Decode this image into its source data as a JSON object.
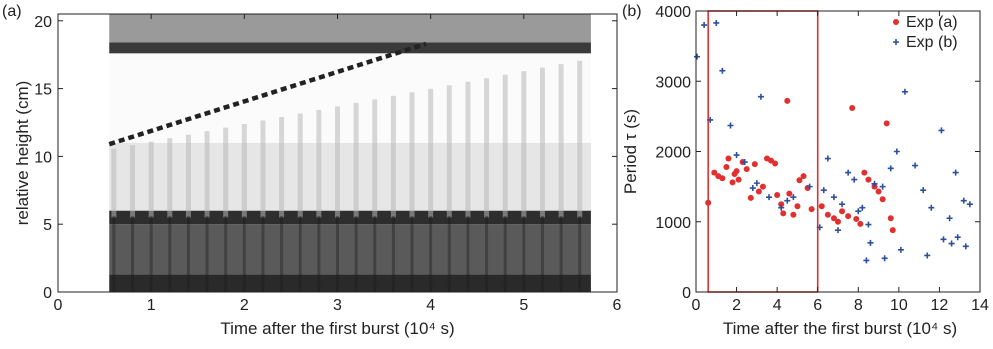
{
  "chart_data": [
    {
      "type": "heatmap",
      "panel_label": "(a)",
      "xlabel": "Time after the first burst (10⁴ s)",
      "ylabel": "relative height (cm)",
      "xlim": [
        0,
        6
      ],
      "ylim": [
        0,
        20.5
      ],
      "xticks": [
        "0",
        "1",
        "2",
        "3",
        "4",
        "5",
        "6"
      ],
      "yticks": [
        "0",
        "5",
        "10",
        "15",
        "20"
      ],
      "data_xrange": [
        0.55,
        5.72
      ],
      "bursts_x": [
        0.6,
        0.8,
        1.0,
        1.2,
        1.4,
        1.6,
        1.8,
        2.0,
        2.2,
        2.4,
        2.6,
        2.8,
        3.0,
        3.2,
        3.4,
        3.6,
        3.8,
        4.0,
        4.2,
        4.4,
        4.6,
        4.8,
        5.0,
        5.2,
        5.4,
        5.6
      ],
      "intensity_bands": [
        {
          "y0": 0.0,
          "y1": 1.3,
          "gray": "#2a2a2a"
        },
        {
          "y0": 1.3,
          "y1": 5.0,
          "gray": "#5a5a5a"
        },
        {
          "y0": 5.0,
          "y1": 6.0,
          "gray": "#2e2e2e"
        },
        {
          "y0": 6.0,
          "y1": 11.0,
          "gray": "#e6e6e6"
        },
        {
          "y0": 11.0,
          "y1": 17.6,
          "gray": "#fbfbfb"
        },
        {
          "y0": 17.6,
          "y1": 18.4,
          "gray": "#3a3a3a"
        },
        {
          "y0": 18.4,
          "y1": 20.5,
          "gray": "#9a9a9a"
        }
      ],
      "front_line": {
        "x": [
          0.55,
          3.95
        ],
        "y": [
          10.9,
          18.3
        ],
        "style": "dashed",
        "color": "#222222"
      }
    },
    {
      "type": "scatter",
      "panel_label": "(b)",
      "xlabel": "Time after the first burst (10⁴ s)",
      "ylabel": "Period τ (s)",
      "xlim": [
        0,
        14
      ],
      "ylim": [
        0,
        4000
      ],
      "xticks": [
        "0",
        "2",
        "4",
        "6",
        "8",
        "10",
        "12",
        "14"
      ],
      "yticks": [
        "0",
        "1000",
        "2000",
        "3000",
        "4000"
      ],
      "highlight_box": {
        "x": [
          0.6,
          6.0
        ],
        "y": [
          0,
          4000
        ],
        "color": "#e23030"
      },
      "legend_position": "top-right",
      "series": [
        {
          "name": "Exp (a)",
          "marker": "circle",
          "color": "#e23030",
          "points": [
            [
              0.6,
              1270
            ],
            [
              0.9,
              1700
            ],
            [
              1.1,
              1650
            ],
            [
              1.3,
              1620
            ],
            [
              1.5,
              1780
            ],
            [
              1.6,
              1900
            ],
            [
              1.8,
              1560
            ],
            [
              1.9,
              1680
            ],
            [
              2.0,
              1720
            ],
            [
              2.1,
              1600
            ],
            [
              2.3,
              1850
            ],
            [
              2.5,
              1750
            ],
            [
              2.7,
              1340
            ],
            [
              2.9,
              1820
            ],
            [
              3.1,
              1430
            ],
            [
              3.3,
              1500
            ],
            [
              3.5,
              1900
            ],
            [
              3.7,
              1870
            ],
            [
              3.9,
              1830
            ],
            [
              4.0,
              1380
            ],
            [
              4.2,
              1250
            ],
            [
              4.3,
              1120
            ],
            [
              4.5,
              2720
            ],
            [
              4.6,
              1400
            ],
            [
              4.8,
              1100
            ],
            [
              5.0,
              1220
            ],
            [
              5.1,
              1590
            ],
            [
              5.3,
              1650
            ],
            [
              5.5,
              1480
            ],
            [
              5.7,
              1180
            ],
            [
              6.2,
              1220
            ],
            [
              6.5,
              1100
            ],
            [
              6.8,
              1050
            ],
            [
              7.0,
              1000
            ],
            [
              7.2,
              1150
            ],
            [
              7.5,
              1080
            ],
            [
              7.7,
              2620
            ],
            [
              7.9,
              1040
            ],
            [
              8.1,
              970
            ],
            [
              8.3,
              1700
            ],
            [
              8.5,
              1600
            ],
            [
              8.8,
              1500
            ],
            [
              9.0,
              1430
            ],
            [
              9.2,
              1320
            ],
            [
              9.4,
              2400
            ],
            [
              9.6,
              1050
            ],
            [
              9.7,
              880
            ]
          ]
        },
        {
          "name": "Exp (b)",
          "marker": "plus",
          "color": "#2e4fa0",
          "points": [
            [
              0.05,
              3350
            ],
            [
              0.4,
              3800
            ],
            [
              0.7,
              2450
            ],
            [
              1.0,
              3830
            ],
            [
              1.3,
              3150
            ],
            [
              1.7,
              2370
            ],
            [
              2.0,
              1950
            ],
            [
              2.4,
              1850
            ],
            [
              2.8,
              1480
            ],
            [
              3.0,
              1550
            ],
            [
              3.2,
              2780
            ],
            [
              3.6,
              1350
            ],
            [
              4.2,
              1200
            ],
            [
              4.5,
              1300
            ],
            [
              4.8,
              1350
            ],
            [
              5.6,
              1500
            ],
            [
              6.1,
              920
            ],
            [
              6.5,
              1900
            ],
            [
              6.8,
              1350
            ],
            [
              7.2,
              1250
            ],
            [
              7.5,
              1700
            ],
            [
              7.8,
              1600
            ],
            [
              8.0,
              1150
            ],
            [
              8.2,
              1200
            ],
            [
              8.5,
              960
            ],
            [
              8.8,
              1540
            ],
            [
              9.2,
              1500
            ],
            [
              9.6,
              1760
            ],
            [
              9.9,
              2000
            ],
            [
              10.3,
              2850
            ],
            [
              10.8,
              1800
            ],
            [
              11.2,
              1450
            ],
            [
              11.6,
              1200
            ],
            [
              12.1,
              2300
            ],
            [
              12.5,
              1050
            ],
            [
              12.8,
              1700
            ],
            [
              13.2,
              1300
            ],
            [
              13.5,
              1250
            ],
            [
              12.2,
              750
            ],
            [
              12.6,
              690
            ],
            [
              12.9,
              780
            ],
            [
              13.3,
              650
            ],
            [
              11.4,
              520
            ],
            [
              10.1,
              600
            ],
            [
              9.3,
              480
            ],
            [
              8.6,
              700
            ],
            [
              7.0,
              880
            ],
            [
              6.3,
              1450
            ],
            [
              8.4,
              450
            ]
          ]
        }
      ]
    }
  ]
}
